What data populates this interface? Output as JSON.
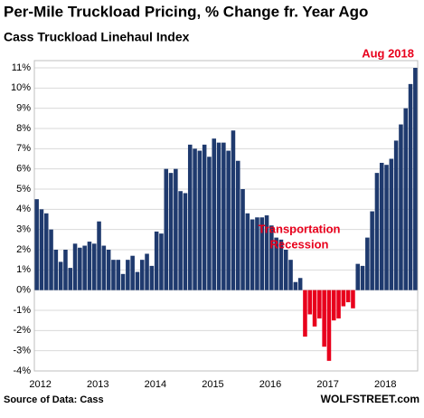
{
  "chart_data": {
    "type": "bar",
    "title": "Per-Mile Truckload Pricing, % Change fr. Year Ago",
    "subtitle": "Cass Truckload Linehaul Index",
    "categories": [
      "2012",
      null,
      null,
      null,
      null,
      null,
      null,
      null,
      null,
      null,
      null,
      null,
      "2013",
      null,
      null,
      null,
      null,
      null,
      null,
      null,
      null,
      null,
      null,
      null,
      "2014",
      null,
      null,
      null,
      null,
      null,
      null,
      null,
      null,
      null,
      null,
      null,
      "2015",
      null,
      null,
      null,
      null,
      null,
      null,
      null,
      null,
      null,
      null,
      null,
      "2016",
      null,
      null,
      null,
      null,
      null,
      null,
      null,
      null,
      null,
      null,
      null,
      "2017",
      null,
      null,
      null,
      null,
      null,
      null,
      null,
      null,
      null,
      null,
      null,
      "2018",
      null,
      null,
      null,
      null,
      null,
      null,
      null
    ],
    "values": [
      4.5,
      4.0,
      3.8,
      3.0,
      2.0,
      1.4,
      2.0,
      1.1,
      2.3,
      2.1,
      2.2,
      2.4,
      2.3,
      3.4,
      2.2,
      2.0,
      1.5,
      1.5,
      0.8,
      1.5,
      1.7,
      0.9,
      1.5,
      1.8,
      1.2,
      2.9,
      2.8,
      6.0,
      5.8,
      6.0,
      4.9,
      4.8,
      7.2,
      7.0,
      6.9,
      7.2,
      6.6,
      7.5,
      7.3,
      7.3,
      6.9,
      7.9,
      6.4,
      5.0,
      3.8,
      3.5,
      3.6,
      3.6,
      3.7,
      3.2,
      2.6,
      2.5,
      2.0,
      1.5,
      0.4,
      0.6,
      -2.3,
      -1.2,
      -1.8,
      -1.4,
      -2.8,
      -3.5,
      -1.5,
      -1.4,
      -0.8,
      -0.6,
      -0.9,
      1.3,
      1.2,
      2.6,
      3.9,
      5.8,
      6.3,
      6.2,
      6.5,
      7.4,
      8.2,
      9.0,
      10.2,
      11.0
    ],
    "color": "#1f3a6e",
    "negative_color": "#e8001c",
    "ylim": [
      -4,
      11
    ],
    "yticks": [
      {
        "value": -4,
        "label": "-4%"
      },
      {
        "value": -3,
        "label": "-3%"
      },
      {
        "value": -2,
        "label": "-2%"
      },
      {
        "value": -1,
        "label": "-1%"
      },
      {
        "value": 0,
        "label": "0%"
      },
      {
        "value": 1,
        "label": "1%"
      },
      {
        "value": 2,
        "label": "2%"
      },
      {
        "value": 3,
        "label": "3%"
      },
      {
        "value": 4,
        "label": "4%"
      },
      {
        "value": 5,
        "label": "5%"
      },
      {
        "value": 6,
        "label": "6%"
      },
      {
        "value": 7,
        "label": "7%"
      },
      {
        "value": 8,
        "label": "8%"
      },
      {
        "value": 9,
        "label": "9%"
      },
      {
        "value": 10,
        "label": "10%"
      },
      {
        "value": 11,
        "label": "11%"
      }
    ],
    "grid": true,
    "annotations": [
      {
        "text": "Aug 2018",
        "color": "#e8001c"
      },
      {
        "text": "Transportation",
        "color": "#e8001c"
      },
      {
        "text": "Recession",
        "color": "#e8001c"
      }
    ],
    "source": "Source of Data: Cass",
    "credit": "WOLFSTREET.com"
  }
}
